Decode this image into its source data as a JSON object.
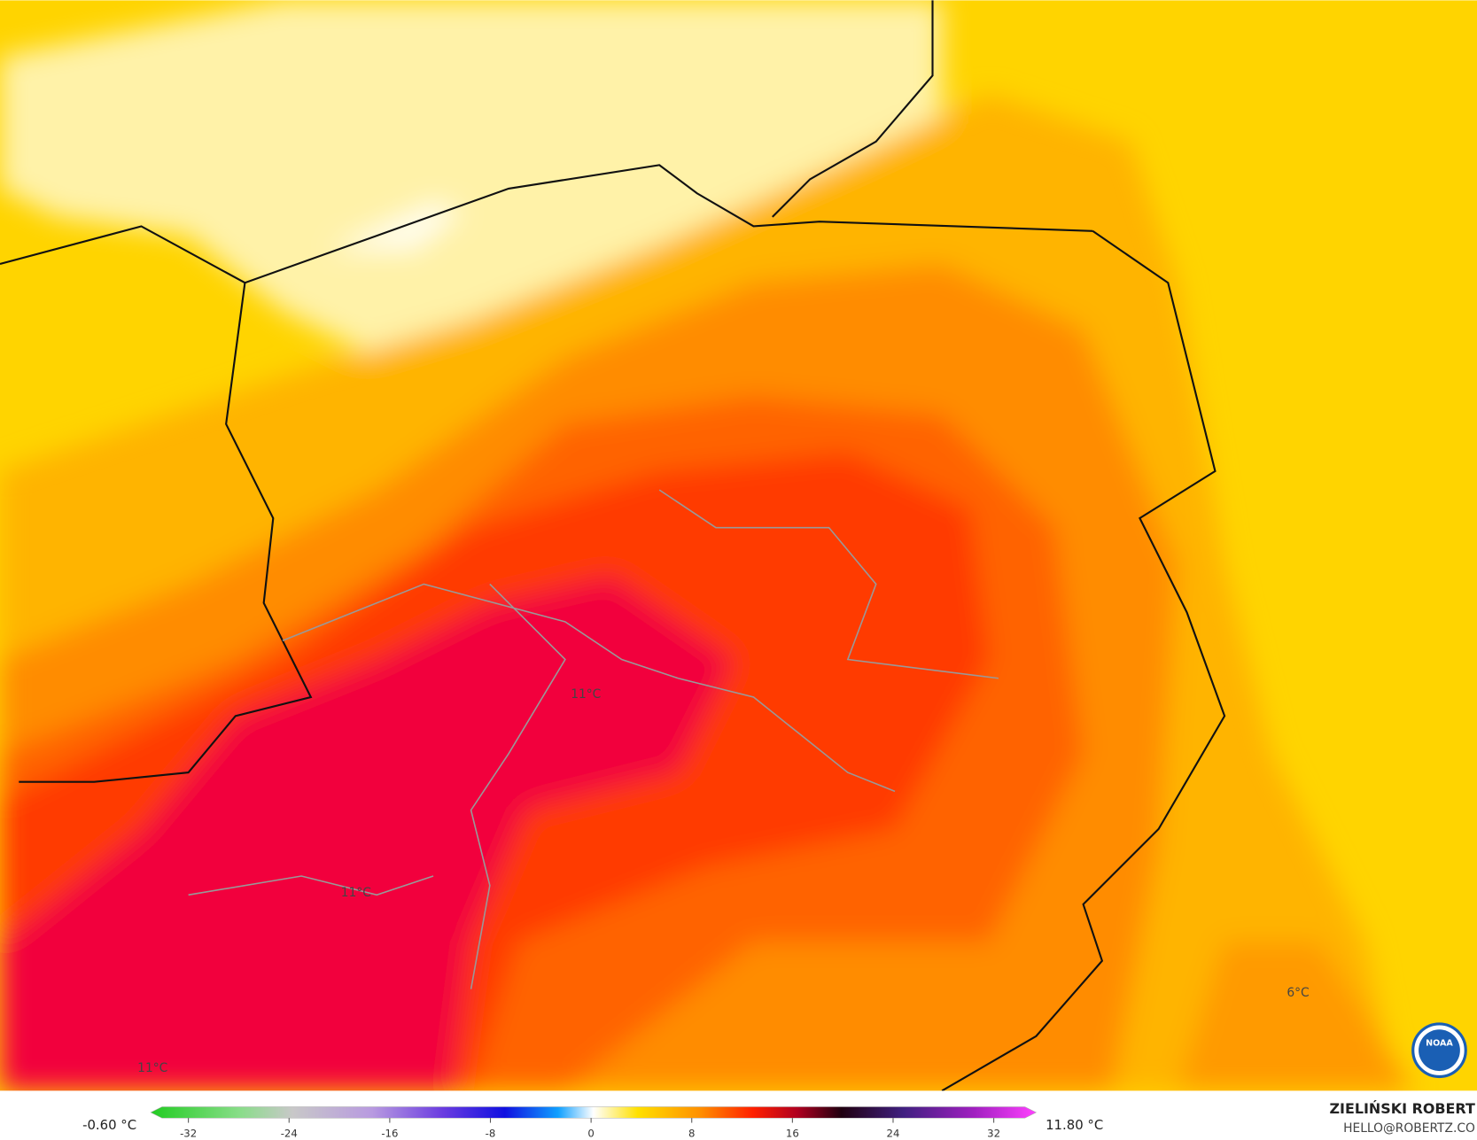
{
  "map_labels": [
    {
      "text": "11°C"
    },
    {
      "text": "11°C"
    },
    {
      "text": "11°C"
    },
    {
      "text": "6°C"
    }
  ],
  "colorbar": {
    "min_label": "-0.60 °C",
    "max_label": "11.80 °C",
    "ticks": [
      -32,
      -24,
      -16,
      -8,
      0,
      8,
      16,
      24,
      32
    ]
  },
  "credits": {
    "author": "ZIELIŃSKI ROBERT",
    "contact": "HELLO@ROBERTZ.CO",
    "logo": "NOAA"
  }
}
